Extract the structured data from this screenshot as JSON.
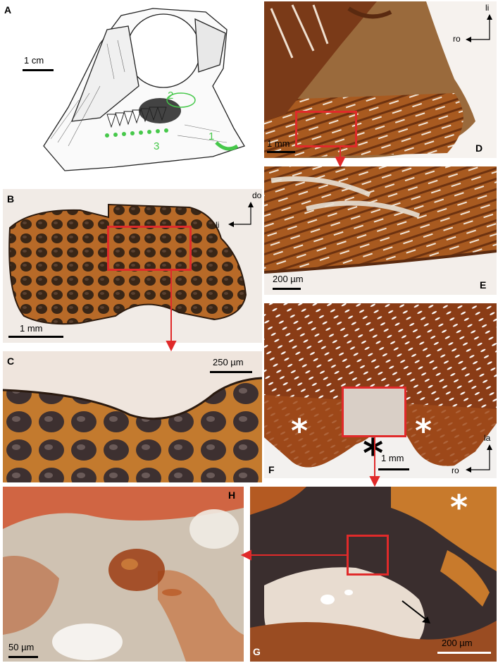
{
  "panels": {
    "A": {
      "label": "A",
      "scale": "1 cm",
      "regions": [
        "1",
        "2",
        "3"
      ]
    },
    "B": {
      "label": "B",
      "scale": "1 mm",
      "axis_vertical": "do",
      "axis_horizontal": "li"
    },
    "C": {
      "label": "C",
      "scale": "250 µm"
    },
    "D": {
      "label": "D",
      "scale": "1 mm",
      "axis_vertical": "li",
      "axis_horizontal": "ro"
    },
    "E": {
      "label": "E",
      "scale": "200 µm"
    },
    "F": {
      "label": "F",
      "scale": "1 mm",
      "axis_vertical": "la",
      "axis_horizontal": "ro",
      "asterisk": "*"
    },
    "G": {
      "label": "G",
      "scale": "200 µm",
      "asterisk": "*"
    },
    "H": {
      "label": "H",
      "scale": "50 µm"
    }
  },
  "colors": {
    "highlight_box": "#e02a2a",
    "region_marker": "#46c84a",
    "bone_dark": "#3a2010",
    "bone_mid": "#a85a20",
    "bone_light": "#e0a060"
  }
}
